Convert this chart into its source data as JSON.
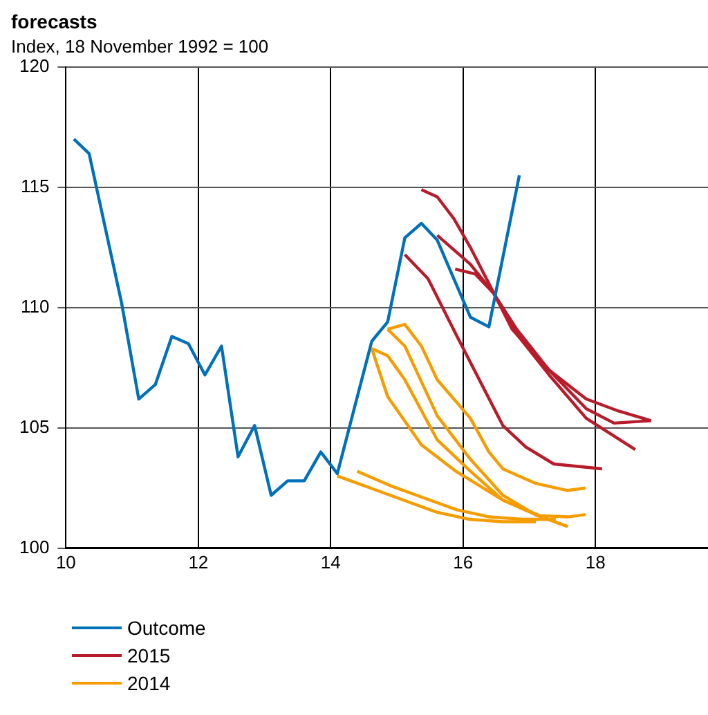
{
  "chart_data": {
    "type": "line",
    "title": "forecasts",
    "subtitle": "Index, 18 November 1992 = 100",
    "xlim": [
      10,
      19.7
    ],
    "xticks": [
      10,
      12,
      14,
      16,
      18
    ],
    "ylim": [
      100,
      120
    ],
    "yticks": [
      100,
      105,
      110,
      115,
      120
    ],
    "grid": true,
    "legend": "bottom",
    "marker": "none",
    "line_style": "solid",
    "series": [
      {
        "name": "Outcome",
        "color": "#0071b9",
        "x": [
          10.12,
          10.35,
          10.84,
          11.1,
          11.35,
          11.6,
          11.85,
          12.1,
          12.35,
          12.6,
          12.85,
          13.1,
          13.35,
          13.6,
          13.85,
          14.1,
          14.62,
          14.86,
          15.12,
          15.37,
          15.61,
          16.11,
          16.39,
          16.85
        ],
        "values": [
          117.0,
          116.4,
          110.2,
          106.2,
          106.8,
          108.8,
          108.5,
          107.2,
          108.4,
          103.8,
          105.1,
          102.2,
          102.8,
          102.8,
          104.0,
          103.1,
          108.6,
          109.4,
          112.9,
          113.5,
          112.8,
          109.6,
          109.2,
          115.5
        ]
      },
      {
        "name": "2015",
        "color": "#b81c2b",
        "x": [
          15.37,
          15.61,
          15.86,
          16.11,
          16.39,
          16.74,
          17.3,
          17.86,
          18.35,
          18.84
        ],
        "values": [
          114.9,
          114.6,
          113.7,
          112.5,
          111.0,
          109.1,
          107.4,
          106.2,
          105.7,
          105.3
        ]
      },
      {
        "color": "#b81c2b",
        "x": [
          15.61,
          16.11,
          16.46,
          16.81,
          17.3,
          17.86,
          18.6
        ],
        "values": [
          113.0,
          111.8,
          110.6,
          108.9,
          107.2,
          105.4,
          104.1
        ]
      },
      {
        "color": "#b81c2b",
        "x": [
          15.12,
          15.47,
          15.89,
          16.32,
          16.6,
          16.95,
          17.37,
          18.1
        ],
        "values": [
          112.2,
          111.2,
          108.9,
          106.6,
          105.1,
          104.2,
          103.5,
          103.3
        ]
      },
      {
        "color": "#b81c2b",
        "x": [
          15.88,
          16.18,
          16.46,
          16.81,
          17.3,
          17.86,
          18.28,
          18.84
        ],
        "values": [
          111.6,
          111.4,
          110.6,
          109.1,
          107.4,
          105.8,
          105.2,
          105.3
        ]
      },
      {
        "name": "2014",
        "color": "#f59c00",
        "x": [
          14.1,
          14.6,
          15.1,
          15.6,
          16.1,
          16.6,
          17.1
        ],
        "values": [
          103.0,
          102.5,
          102.0,
          101.5,
          101.2,
          101.1,
          101.1
        ]
      },
      {
        "color": "#f59c00",
        "x": [
          14.4,
          14.9,
          15.4,
          15.9,
          16.4,
          16.9,
          17.4
        ],
        "values": [
          103.2,
          102.6,
          102.1,
          101.6,
          101.3,
          101.2,
          101.2
        ]
      },
      {
        "color": "#f59c00",
        "x": [
          14.62,
          14.86,
          15.37,
          15.89,
          16.6,
          17.09,
          17.58
        ],
        "values": [
          108.3,
          106.3,
          104.3,
          103.2,
          102.0,
          101.4,
          100.9
        ]
      },
      {
        "color": "#f59c00",
        "x": [
          14.62,
          14.86,
          15.12,
          15.61,
          16.11,
          16.6,
          17.16,
          17.58,
          17.85
        ],
        "values": [
          108.3,
          108.0,
          107.0,
          104.5,
          103.2,
          102.0,
          101.35,
          101.3,
          101.4
        ]
      },
      {
        "color": "#f59c00",
        "x": [
          14.86,
          15.12,
          15.61,
          16.11,
          16.6,
          17.09,
          17.58
        ],
        "values": [
          109.1,
          108.4,
          105.5,
          103.7,
          102.2,
          101.4,
          100.9
        ]
      },
      {
        "color": "#f59c00",
        "x": [
          14.86,
          15.12,
          15.37,
          15.61,
          16.11,
          16.39,
          16.6,
          17.09,
          17.58,
          17.85
        ],
        "values": [
          109.1,
          109.3,
          108.4,
          107.0,
          105.4,
          104.0,
          103.3,
          102.7,
          102.4,
          102.5
        ]
      }
    ]
  }
}
